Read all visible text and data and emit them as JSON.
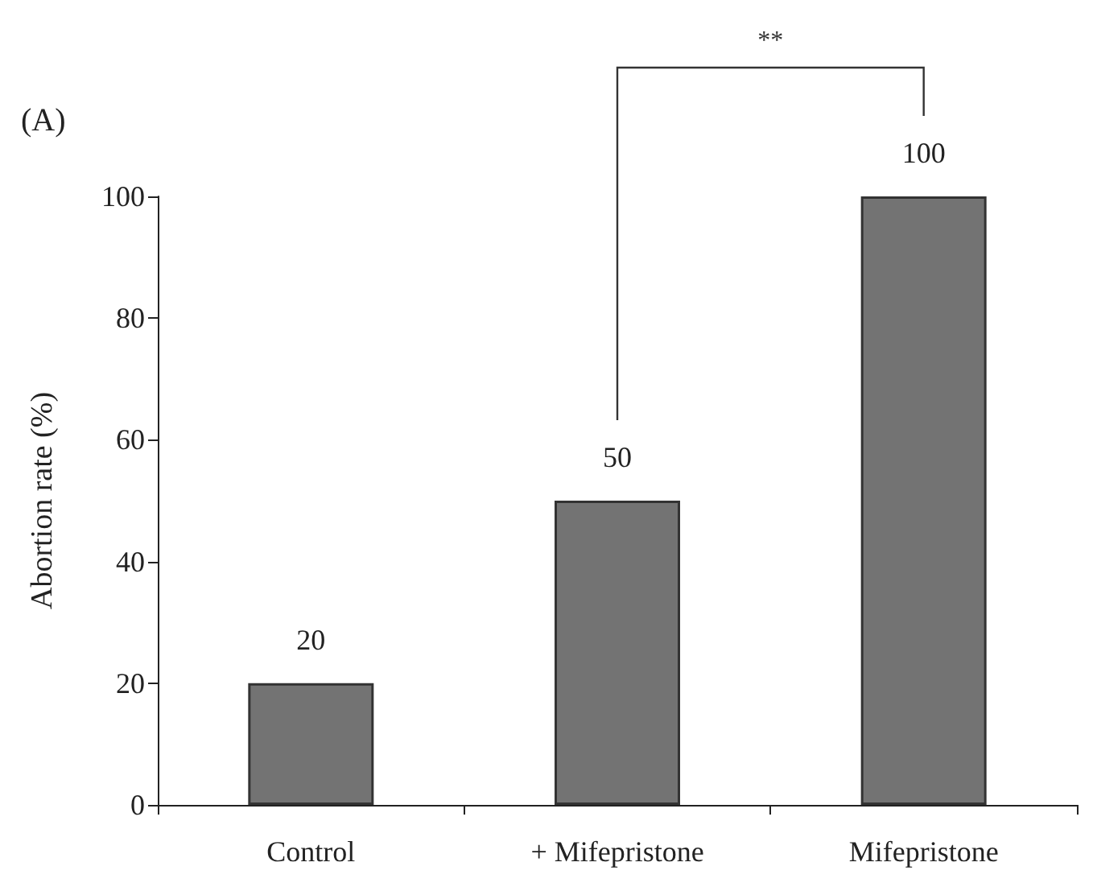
{
  "chart_data": {
    "type": "bar",
    "title": "(A)",
    "ylabel": "Abortion rate (%)",
    "categories": [
      "Control",
      "+ Mifepristone",
      "Mifepristone"
    ],
    "values": [
      20,
      50,
      100
    ],
    "color": "#737373",
    "ylim": [
      0,
      100
    ],
    "yticks": [
      0,
      20,
      40,
      60,
      80,
      100
    ],
    "grid": false,
    "data_labels": true,
    "annotations": [
      "**"
    ]
  }
}
